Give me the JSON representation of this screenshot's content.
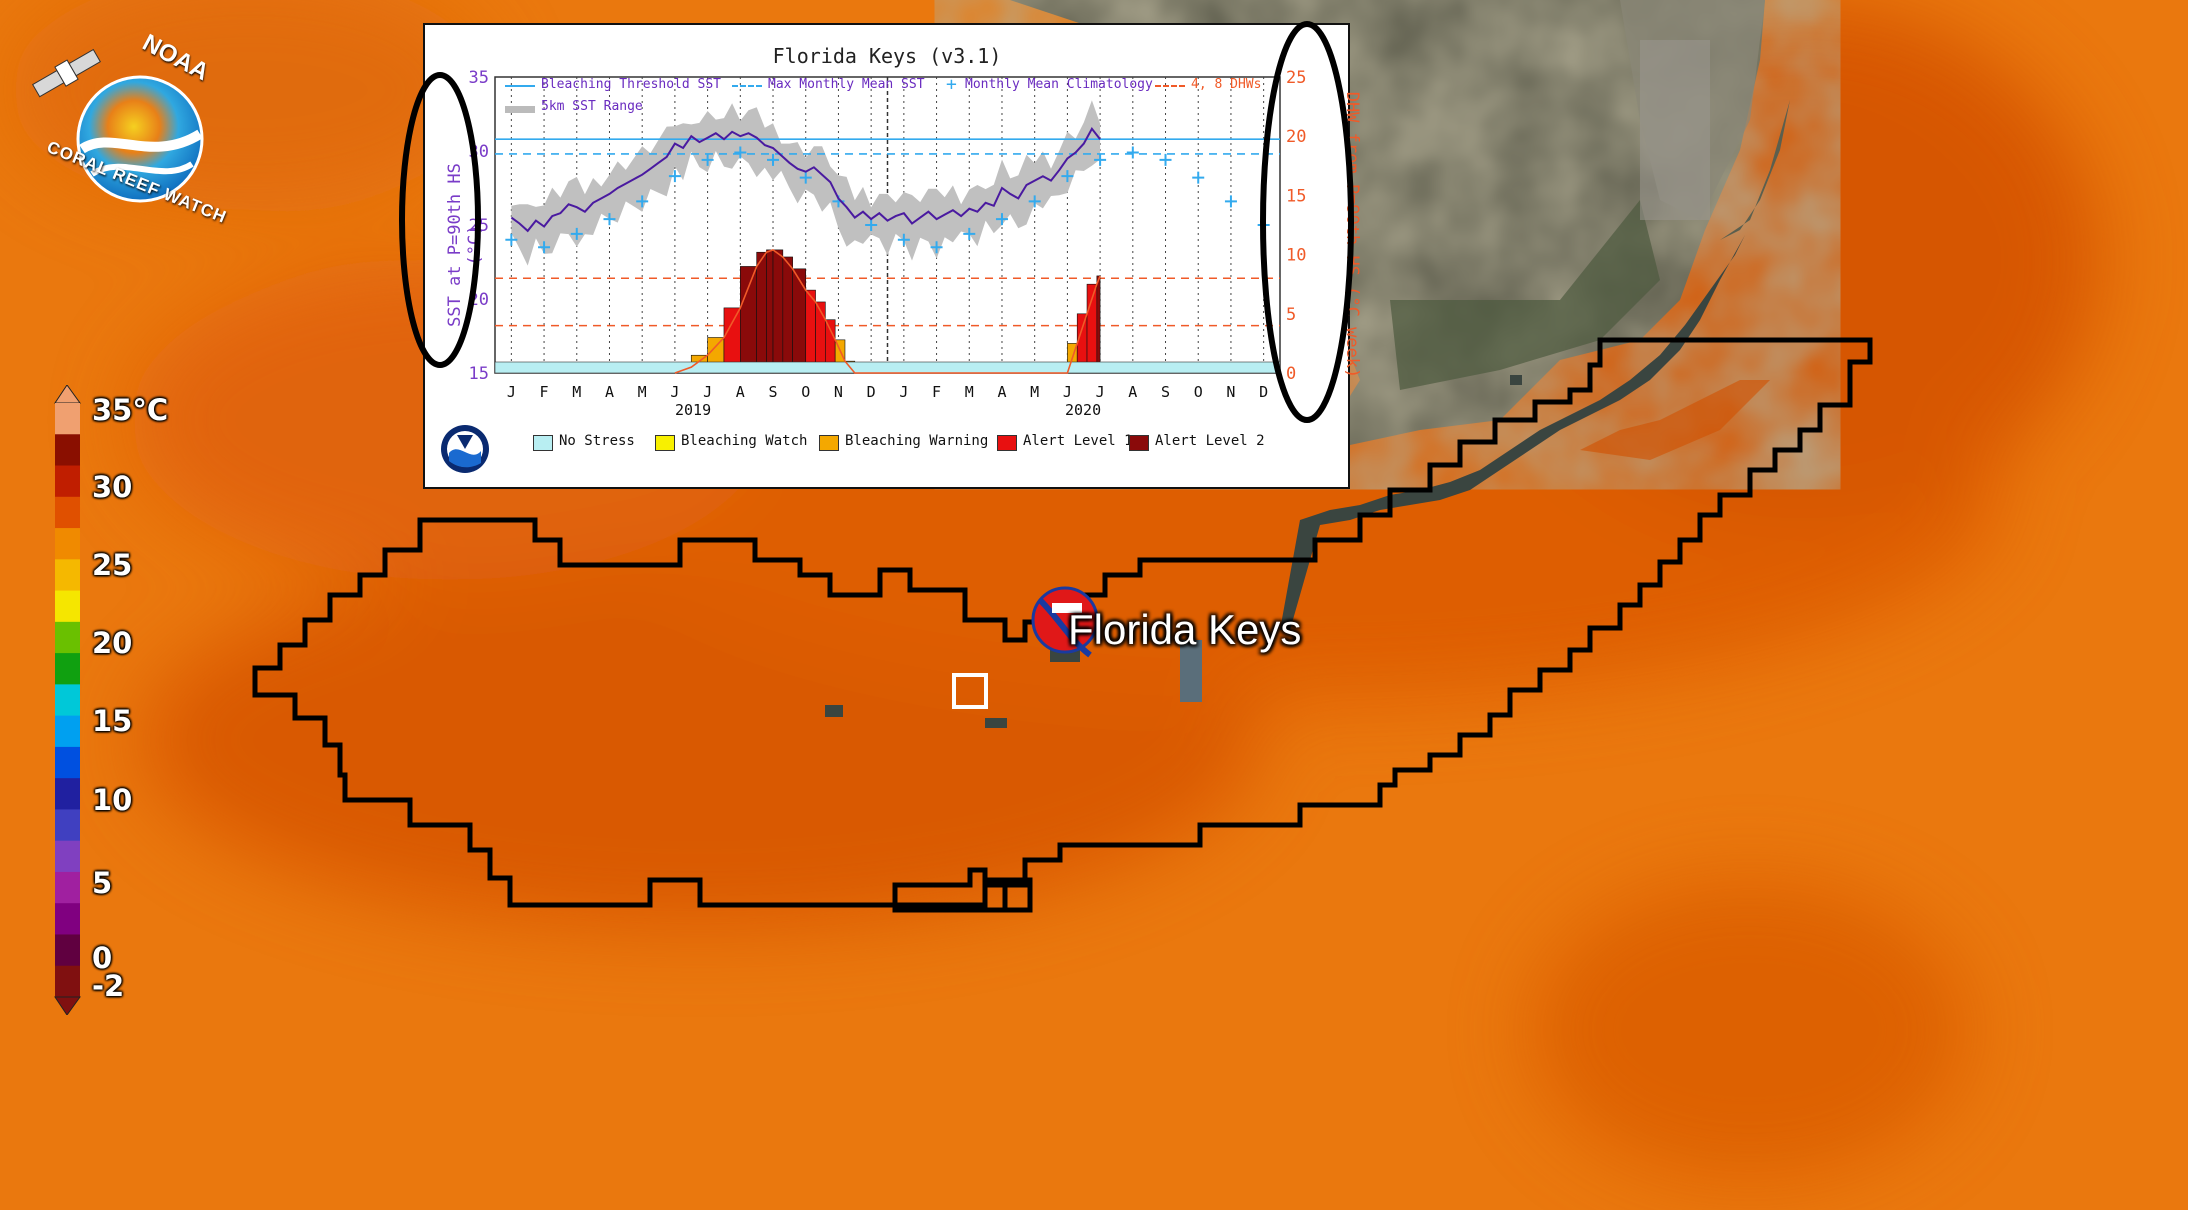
{
  "logo": {
    "top_text": "NOAA",
    "bottom_text": "CORAL REEF WATCH",
    "icon": "noaa-crw-satellite-globe-icon"
  },
  "colorbar": {
    "labels": [
      "35°C",
      "30",
      "25",
      "20",
      "15",
      "10",
      "5",
      "0",
      "-2"
    ],
    "colors": [
      "#f0a070",
      "#8a0f00",
      "#c01e00",
      "#e05000",
      "#f08a00",
      "#f5b800",
      "#f5e600",
      "#6ac000",
      "#10a010",
      "#00c8d8",
      "#00a0f0",
      "#0050e0",
      "#2020a0",
      "#4040c0",
      "#8040c0",
      "#a020a0",
      "#800080",
      "#600040",
      "#801010"
    ]
  },
  "map": {
    "site_label": "Florida Keys",
    "site_icon": "noaa-crw-site-marker-icon",
    "sst_colors": {
      "dark": "#d85600",
      "mid": "#e06208",
      "light": "#ea780e"
    }
  },
  "chart_data": {
    "type": "line",
    "title": "Florida Keys (v3.1)",
    "ylabel": "SST at P=90th HS (°C)",
    "y2label": "DHW from P=90th HS (°C week)",
    "ylim": [
      15,
      35
    ],
    "y2lim": [
      0,
      25
    ],
    "yticks": [
      "35",
      "30",
      "25",
      "20",
      "15"
    ],
    "y2ticks": [
      "25",
      "20",
      "15",
      "10",
      "5",
      "0"
    ],
    "months": [
      "J",
      "F",
      "M",
      "A",
      "M",
      "J",
      "J",
      "A",
      "S",
      "O",
      "N",
      "D",
      "J",
      "F",
      "M",
      "A",
      "M",
      "J",
      "J",
      "A",
      "S",
      "O",
      "N",
      "D"
    ],
    "years": [
      "2019",
      "2020"
    ],
    "legend": [
      "Bleaching Threshold SST",
      "Max Monthly Mean SST",
      "Monthly Mean Climatology",
      "4, 8 DHWs",
      "5km SST Range"
    ],
    "stress_legend": [
      "No Stress",
      "Bleaching Watch",
      "Bleaching Warning",
      "Alert Level 1",
      "Alert Level 2"
    ],
    "stress_colors": [
      "#b8eef2",
      "#f8f000",
      "#f4a800",
      "#e81010",
      "#8a0a0a"
    ],
    "bleaching_threshold": 30.8,
    "mmm": 29.8,
    "dhw_lines": [
      4,
      8
    ],
    "climatology": [
      24.0,
      23.5,
      24.4,
      25.4,
      26.6,
      28.3,
      29.4,
      29.9,
      29.4,
      28.2,
      26.6,
      25.0,
      24.0,
      23.5,
      24.4,
      25.4,
      26.6,
      28.3,
      29.4,
      29.9,
      29.4,
      28.2,
      26.6,
      25.0
    ],
    "sst_series": {
      "months": [
        0.0,
        0.25,
        0.5,
        0.75,
        1.0,
        1.25,
        1.5,
        1.75,
        2.0,
        2.25,
        2.5,
        2.75,
        3.0,
        3.25,
        3.5,
        3.75,
        4.0,
        4.25,
        4.5,
        4.75,
        5.0,
        5.25,
        5.5,
        5.75,
        6.0,
        6.25,
        6.5,
        6.75,
        7.0,
        7.25,
        7.5,
        7.75,
        8.0,
        8.25,
        8.5,
        8.75,
        9.0,
        9.25,
        9.5,
        9.75,
        10.0,
        10.25,
        10.5,
        10.75,
        11.0,
        11.25,
        11.5,
        11.75,
        12.0,
        12.25,
        12.5,
        12.75,
        13.0,
        13.25,
        13.5,
        13.75,
        14.0,
        14.25,
        14.5,
        14.75,
        15.0,
        15.25,
        15.5,
        15.75,
        16.0,
        16.25,
        16.5,
        16.75,
        17.0,
        17.25,
        17.5,
        17.75,
        18.0
      ],
      "values": [
        25.5,
        25.1,
        24.6,
        25.3,
        24.9,
        25.6,
        25.8,
        26.4,
        26.2,
        25.9,
        26.5,
        26.8,
        27.1,
        27.5,
        27.8,
        28.1,
        28.4,
        28.8,
        29.2,
        29.6,
        30.5,
        30.2,
        31.0,
        30.6,
        30.9,
        31.2,
        30.8,
        31.3,
        31.0,
        31.2,
        30.9,
        30.4,
        30.2,
        29.7,
        29.2,
        28.8,
        28.6,
        28.9,
        28.4,
        27.9,
        26.8,
        26.2,
        25.5,
        25.9,
        25.4,
        25.8,
        25.3,
        25.6,
        25.8,
        25.1,
        25.5,
        25.9,
        25.4,
        25.7,
        26.0,
        25.6,
        26.1,
        25.9,
        26.5,
        26.3,
        27.5,
        27.1,
        26.8,
        27.7,
        28.0,
        28.3,
        28.0,
        28.7,
        29.5,
        29.9,
        30.5,
        31.5,
        30.8
      ]
    },
    "dhw_series": {
      "months": [
        5.0,
        5.5,
        6.0,
        6.5,
        7.0,
        7.5,
        7.8,
        8.0,
        8.3,
        8.6,
        9.0,
        9.3,
        9.6,
        9.9,
        10.2,
        10.5,
        17.0,
        17.3,
        17.6,
        17.9,
        18.0
      ],
      "values": [
        0,
        0.5,
        1.5,
        3.0,
        5.5,
        9.0,
        10.2,
        10.4,
        9.8,
        8.8,
        7.0,
        6.0,
        4.5,
        2.8,
        1.0,
        0,
        0,
        2.5,
        5.0,
        7.5,
        8.2
      ]
    }
  }
}
